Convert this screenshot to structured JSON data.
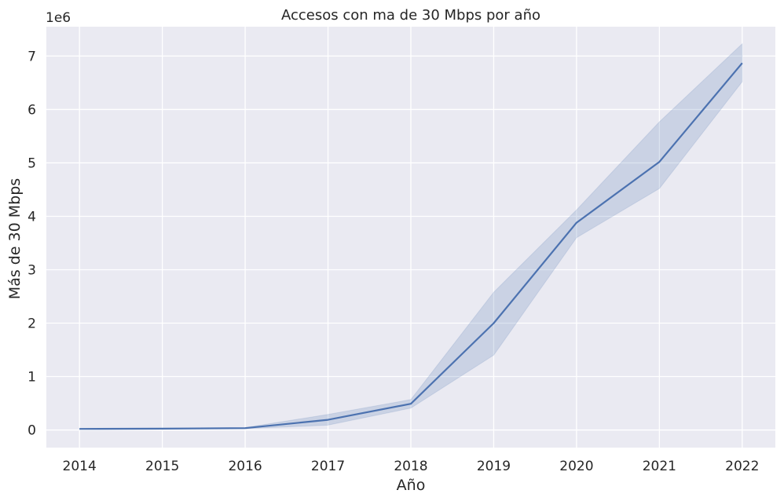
{
  "chart_data": {
    "type": "line",
    "title": "Accesos con ma de 30 Mbps por año",
    "xlabel": "Año",
    "ylabel": "Más de 30 Mbps",
    "y_scale_label": "1e6",
    "x": [
      2014,
      2015,
      2016,
      2017,
      2018,
      2019,
      2020,
      2021,
      2022
    ],
    "y_unit_multiplier": 1000000,
    "series": [
      {
        "values": [
          0.02,
          0.025,
          0.035,
          0.19,
          0.49,
          2.0,
          3.88,
          5.02,
          6.87
        ],
        "ci_lower": [
          0.01,
          0.015,
          0.025,
          0.09,
          0.41,
          1.4,
          3.6,
          4.52,
          6.52
        ],
        "ci_upper": [
          0.03,
          0.035,
          0.045,
          0.29,
          0.57,
          2.58,
          4.12,
          5.77,
          7.23
        ]
      }
    ],
    "xticks": [
      "2014",
      "2015",
      "2016",
      "2017",
      "2018",
      "2019",
      "2020",
      "2021",
      "2022"
    ],
    "yticks": [
      "0",
      "1",
      "2",
      "3",
      "4",
      "5",
      "6",
      "7"
    ],
    "xlim": [
      2013.6,
      2022.4
    ],
    "ylim": [
      -0.33,
      7.55
    ],
    "grid": true,
    "style": "seaborn darkgrid",
    "colors": {
      "background": "#eaeaf2",
      "grid": "#ffffff",
      "line": "#4c72b0",
      "band": "#4c72b0"
    }
  }
}
